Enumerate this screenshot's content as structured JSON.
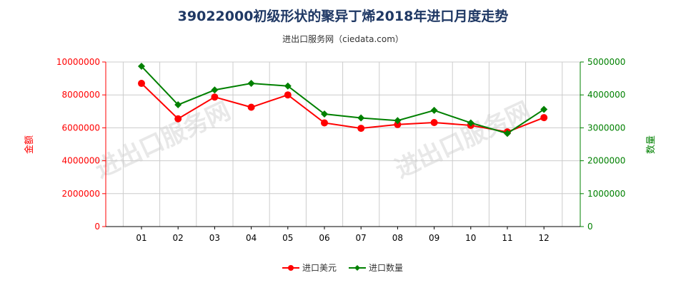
{
  "title": "39022000初级形状的聚异丁烯2018年进口月度走势",
  "subtitle": "进出口服务网（ciedata.com）",
  "watermark": "进出口服务网",
  "colors": {
    "left_axis": "#ff0000",
    "right_axis": "#008000",
    "grid": "#cccccc",
    "title": "#1f3864"
  },
  "chart_data": {
    "type": "line",
    "categories": [
      "01",
      "02",
      "03",
      "04",
      "05",
      "06",
      "07",
      "08",
      "09",
      "10",
      "11",
      "12"
    ],
    "y_left": {
      "label": "金额",
      "range": [
        0,
        10000000
      ],
      "ticks": [
        "0",
        "2000000",
        "4000000",
        "6000000",
        "8000000",
        "10000000"
      ]
    },
    "y_right": {
      "label": "数量",
      "range": [
        0,
        5000000
      ],
      "ticks": [
        "0",
        "1000000",
        "2000000",
        "3000000",
        "4000000",
        "5000000"
      ]
    },
    "grid": true,
    "legend_position": "bottom",
    "series": [
      {
        "name": "进口美元",
        "axis": "left",
        "color": "#ff0000",
        "values": [
          8700000,
          6550000,
          7870000,
          7250000,
          8000000,
          6300000,
          5970000,
          6200000,
          6320000,
          6150000,
          5750000,
          6620000
        ]
      },
      {
        "name": "进口数量",
        "axis": "right",
        "color": "#008000",
        "values": [
          4870000,
          3700000,
          4150000,
          4350000,
          4270000,
          3420000,
          3300000,
          3220000,
          3530000,
          3150000,
          2830000,
          3560000
        ]
      }
    ]
  }
}
